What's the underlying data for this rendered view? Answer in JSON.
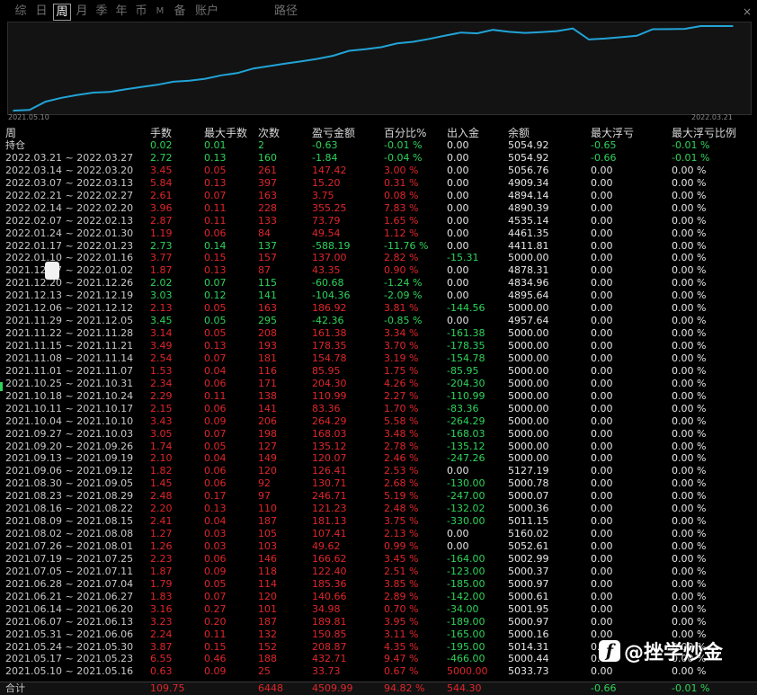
{
  "tabs": [
    {
      "label": "综",
      "active": false
    },
    {
      "label": "日",
      "active": false
    },
    {
      "label": "周",
      "active": true
    },
    {
      "label": "月",
      "active": false
    },
    {
      "label": "季",
      "active": false
    },
    {
      "label": "年",
      "active": false
    },
    {
      "label": "币",
      "active": false
    },
    {
      "label": "M",
      "active": false
    },
    {
      "label": "备",
      "active": false
    },
    {
      "label": "账户",
      "active": false
    },
    {
      "label": "路径",
      "active": false
    }
  ],
  "close_label": "×",
  "chart": {
    "start_date": "2021.05.10",
    "end_date": "2022.03.21",
    "line_color": "#22a3d6",
    "chart_data": {
      "type": "line",
      "x": [
        "2021.05.10",
        "2021.05.17",
        "2021.05.24",
        "2021.05.31",
        "2021.06.07",
        "2021.06.14",
        "2021.06.21",
        "2021.06.28",
        "2021.07.05",
        "2021.07.12",
        "2021.07.19",
        "2021.07.26",
        "2021.08.02",
        "2021.08.09",
        "2021.08.16",
        "2021.08.23",
        "2021.08.30",
        "2021.09.06",
        "2021.09.13",
        "2021.09.20",
        "2021.09.27",
        "2021.10.04",
        "2021.10.11",
        "2021.10.18",
        "2021.10.25",
        "2021.11.01",
        "2021.11.08",
        "2021.11.15",
        "2021.11.22",
        "2021.11.29",
        "2021.12.06",
        "2021.12.13",
        "2021.12.20",
        "2021.12.27",
        "2022.01.03",
        "2022.01.10",
        "2022.01.17",
        "2022.01.24",
        "2022.01.31",
        "2022.02.07",
        "2022.02.14",
        "2022.02.21",
        "2022.02.28",
        "2022.03.07",
        "2022.03.14",
        "2022.03.21"
      ],
      "values": [
        0,
        33.73,
        476.45,
        684.32,
        835.17,
        960.14,
        995.12,
        1135.78,
        1258.66,
        1380.06,
        1546.68,
        1596.3,
        1703.71,
        1885.24,
        2006.47,
        2253.18,
        2383.89,
        2510.3,
        2630.37,
        2765.49,
        2933.52,
        3197.81,
        3281.17,
        3392.16,
        3596.46,
        3682.41,
        3837.19,
        4015.54,
        4176.92,
        4134.66,
        4321.58,
        4217.22,
        4156.54,
        4199.89,
        4256.3,
        4393.3,
        3805.11,
        3854.65,
        3928.44,
        4001.94,
        4357.19,
        4360.94,
        4376.14,
        4523.56,
        4523.56,
        4521.72
      ],
      "grid": false,
      "legend": "none"
    }
  },
  "headers": [
    "周",
    "手数",
    "最大手数",
    "次数",
    "盈亏金额",
    "百分比%",
    "出入金",
    "余额",
    "最大浮亏",
    "最大浮亏比例"
  ],
  "rows": [
    {
      "cls": "green c8g c9g first-dark",
      "cells": [
        "持仓",
        "0.02",
        "0.01",
        "2",
        "-0.63",
        "-0.01 %",
        "0.00",
        "5054.92",
        "-0.65",
        "-0.01 %"
      ]
    },
    {
      "cls": "green c8g c9g",
      "cells": [
        "2022.03.21 ~ 2022.03.27",
        "2.72",
        "0.13",
        "160",
        "-1.84",
        "-0.04 %",
        "0.00",
        "5054.92",
        "-0.66",
        "-0.01 %"
      ]
    },
    {
      "cls": "red",
      "cells": [
        "2022.03.14 ~ 2022.03.20",
        "3.45",
        "0.05",
        "261",
        "147.42",
        "3.00 %",
        "0.00",
        "5056.76",
        "0.00",
        "0.00 %"
      ]
    },
    {
      "cls": "red",
      "cells": [
        "2022.03.07 ~ 2022.03.13",
        "5.84",
        "0.13",
        "397",
        "15.20",
        "0.31 %",
        "0.00",
        "4909.34",
        "0.00",
        "0.00 %"
      ]
    },
    {
      "cls": "red",
      "cells": [
        "2022.02.21 ~ 2022.02.27",
        "2.61",
        "0.07",
        "163",
        "3.75",
        "0.08 %",
        "0.00",
        "4894.14",
        "0.00",
        "0.00 %"
      ]
    },
    {
      "cls": "red",
      "cells": [
        "2022.02.14 ~ 2022.02.20",
        "3.96",
        "0.11",
        "228",
        "355.25",
        "7.83 %",
        "0.00",
        "4890.39",
        "0.00",
        "0.00 %"
      ]
    },
    {
      "cls": "red",
      "cells": [
        "2022.02.07 ~ 2022.02.13",
        "2.87",
        "0.11",
        "133",
        "73.79",
        "1.65 %",
        "0.00",
        "4535.14",
        "0.00",
        "0.00 %"
      ]
    },
    {
      "cls": "red",
      "cells": [
        "2022.01.24 ~ 2022.01.30",
        "1.19",
        "0.06",
        "84",
        "49.54",
        "1.12 %",
        "0.00",
        "4461.35",
        "0.00",
        "0.00 %"
      ]
    },
    {
      "cls": "green",
      "cells": [
        "2022.01.17 ~ 2022.01.23",
        "2.73",
        "0.14",
        "137",
        "-588.19",
        "-11.76 %",
        "0.00",
        "4411.81",
        "0.00",
        "0.00 %"
      ]
    },
    {
      "cls": "red neg-out",
      "cells": [
        "2022.01.10 ~ 2022.01.16",
        "3.77",
        "0.15",
        "157",
        "137.00",
        "2.82 %",
        "-15.31",
        "5000.00",
        "0.00",
        "0.00 %"
      ]
    },
    {
      "cls": "red",
      "cells": [
        "2021.12.27 ~ 2022.01.02",
        "1.87",
        "0.13",
        "87",
        "43.35",
        "0.90 %",
        "0.00",
        "4878.31",
        "0.00",
        "0.00 %"
      ]
    },
    {
      "cls": "green",
      "cells": [
        "2021.12.20 ~ 2021.12.26",
        "2.02",
        "0.07",
        "115",
        "-60.68",
        "-1.24 %",
        "0.00",
        "4834.96",
        "0.00",
        "0.00 %"
      ]
    },
    {
      "cls": "green",
      "cells": [
        "2021.12.13 ~ 2021.12.19",
        "3.03",
        "0.12",
        "141",
        "-104.36",
        "-2.09 %",
        "0.00",
        "4895.64",
        "0.00",
        "0.00 %"
      ]
    },
    {
      "cls": "red neg-out",
      "cells": [
        "2021.12.06 ~ 2021.12.12",
        "2.13",
        "0.05",
        "163",
        "186.92",
        "3.81 %",
        "-144.56",
        "5000.00",
        "0.00",
        "0.00 %"
      ]
    },
    {
      "cls": "green",
      "cells": [
        "2021.11.29 ~ 2021.12.05",
        "3.45",
        "0.05",
        "295",
        "-42.36",
        "-0.85 %",
        "0.00",
        "4957.64",
        "0.00",
        "0.00 %"
      ]
    },
    {
      "cls": "red neg-out",
      "cells": [
        "2021.11.22 ~ 2021.11.28",
        "3.14",
        "0.05",
        "208",
        "161.38",
        "3.34 %",
        "-161.38",
        "5000.00",
        "0.00",
        "0.00 %"
      ]
    },
    {
      "cls": "red neg-out",
      "cells": [
        "2021.11.15 ~ 2021.11.21",
        "3.49",
        "0.13",
        "193",
        "178.35",
        "3.70 %",
        "-178.35",
        "5000.00",
        "0.00",
        "0.00 %"
      ]
    },
    {
      "cls": "red neg-out",
      "cells": [
        "2021.11.08 ~ 2021.11.14",
        "2.54",
        "0.07",
        "181",
        "154.78",
        "3.19 %",
        "-154.78",
        "5000.00",
        "0.00",
        "0.00 %"
      ]
    },
    {
      "cls": "red neg-out",
      "cells": [
        "2021.11.01 ~ 2021.11.07",
        "1.53",
        "0.04",
        "116",
        "85.95",
        "1.75 %",
        "-85.95",
        "5000.00",
        "0.00",
        "0.00 %"
      ]
    },
    {
      "cls": "red neg-out",
      "cells": [
        "2021.10.25 ~ 2021.10.31",
        "2.34",
        "0.06",
        "171",
        "204.30",
        "4.26 %",
        "-204.30",
        "5000.00",
        "0.00",
        "0.00 %"
      ]
    },
    {
      "cls": "red neg-out",
      "cells": [
        "2021.10.18 ~ 2021.10.24",
        "2.29",
        "0.11",
        "138",
        "110.99",
        "2.27 %",
        "-110.99",
        "5000.00",
        "0.00",
        "0.00 %"
      ]
    },
    {
      "cls": "red neg-out",
      "cells": [
        "2021.10.11 ~ 2021.10.17",
        "2.15",
        "0.06",
        "141",
        "83.36",
        "1.70 %",
        "-83.36",
        "5000.00",
        "0.00",
        "0.00 %"
      ]
    },
    {
      "cls": "red neg-out",
      "cells": [
        "2021.10.04 ~ 2021.10.10",
        "3.43",
        "0.09",
        "206",
        "264.29",
        "5.58 %",
        "-264.29",
        "5000.00",
        "0.00",
        "0.00 %"
      ]
    },
    {
      "cls": "red neg-out",
      "cells": [
        "2021.09.27 ~ 2021.10.03",
        "3.05",
        "0.07",
        "198",
        "168.03",
        "3.48 %",
        "-168.03",
        "5000.00",
        "0.00",
        "0.00 %"
      ]
    },
    {
      "cls": "red neg-out",
      "cells": [
        "2021.09.20 ~ 2021.09.26",
        "1.74",
        "0.05",
        "127",
        "135.12",
        "2.78 %",
        "-135.12",
        "5000.00",
        "0.00",
        "0.00 %"
      ]
    },
    {
      "cls": "red neg-out",
      "cells": [
        "2021.09.13 ~ 2021.09.19",
        "2.10",
        "0.04",
        "149",
        "120.07",
        "2.46 %",
        "-247.26",
        "5000.00",
        "0.00",
        "0.00 %"
      ]
    },
    {
      "cls": "red",
      "cells": [
        "2021.09.06 ~ 2021.09.12",
        "1.82",
        "0.06",
        "120",
        "126.41",
        "2.53 %",
        "0.00",
        "5127.19",
        "0.00",
        "0.00 %"
      ]
    },
    {
      "cls": "red neg-out",
      "cells": [
        "2021.08.30 ~ 2021.09.05",
        "1.45",
        "0.06",
        "92",
        "130.71",
        "2.68 %",
        "-130.00",
        "5000.78",
        "0.00",
        "0.00 %"
      ]
    },
    {
      "cls": "red neg-out",
      "cells": [
        "2021.08.23 ~ 2021.08.29",
        "2.48",
        "0.17",
        "97",
        "246.71",
        "5.19 %",
        "-247.00",
        "5000.07",
        "0.00",
        "0.00 %"
      ]
    },
    {
      "cls": "red neg-out",
      "cells": [
        "2021.08.16 ~ 2021.08.22",
        "2.20",
        "0.13",
        "110",
        "121.23",
        "2.48 %",
        "-132.02",
        "5000.36",
        "0.00",
        "0.00 %"
      ]
    },
    {
      "cls": "red neg-out",
      "cells": [
        "2021.08.09 ~ 2021.08.15",
        "2.41",
        "0.04",
        "187",
        "181.13",
        "3.75 %",
        "-330.00",
        "5011.15",
        "0.00",
        "0.00 %"
      ]
    },
    {
      "cls": "red",
      "cells": [
        "2021.08.02 ~ 2021.08.08",
        "1.27",
        "0.03",
        "105",
        "107.41",
        "2.13 %",
        "0.00",
        "5160.02",
        "0.00",
        "0.00 %"
      ]
    },
    {
      "cls": "red",
      "cells": [
        "2021.07.26 ~ 2021.08.01",
        "1.26",
        "0.03",
        "103",
        "49.62",
        "0.99 %",
        "0.00",
        "5052.61",
        "0.00",
        "0.00 %"
      ]
    },
    {
      "cls": "red neg-out",
      "cells": [
        "2021.07.19 ~ 2021.07.25",
        "2.23",
        "0.06",
        "146",
        "166.62",
        "3.45 %",
        "-164.00",
        "5002.99",
        "0.00",
        "0.00 %"
      ]
    },
    {
      "cls": "red neg-out",
      "cells": [
        "2021.07.05 ~ 2021.07.11",
        "1.87",
        "0.09",
        "118",
        "122.40",
        "2.51 %",
        "-123.00",
        "5000.37",
        "0.00",
        "0.00 %"
      ]
    },
    {
      "cls": "red neg-out",
      "cells": [
        "2021.06.28 ~ 2021.07.04",
        "1.79",
        "0.05",
        "114",
        "185.36",
        "3.85 %",
        "-185.00",
        "5000.97",
        "0.00",
        "0.00 %"
      ]
    },
    {
      "cls": "red neg-out",
      "cells": [
        "2021.06.21 ~ 2021.06.27",
        "1.83",
        "0.07",
        "120",
        "140.66",
        "2.89 %",
        "-142.00",
        "5000.61",
        "0.00",
        "0.00 %"
      ]
    },
    {
      "cls": "red neg-out",
      "cells": [
        "2021.06.14 ~ 2021.06.20",
        "3.16",
        "0.27",
        "101",
        "34.98",
        "0.70 %",
        "-34.00",
        "5001.95",
        "0.00",
        "0.00 %"
      ]
    },
    {
      "cls": "red neg-out",
      "cells": [
        "2021.06.07 ~ 2021.06.13",
        "3.23",
        "0.20",
        "187",
        "189.81",
        "3.95 %",
        "-189.00",
        "5000.97",
        "0.00",
        "0.00 %"
      ]
    },
    {
      "cls": "red neg-out",
      "cells": [
        "2021.05.31 ~ 2021.06.06",
        "2.24",
        "0.11",
        "132",
        "150.85",
        "3.11 %",
        "-165.00",
        "5000.16",
        "0.00",
        "0.00 %"
      ]
    },
    {
      "cls": "red neg-out",
      "cells": [
        "2021.05.24 ~ 2021.05.30",
        "3.87",
        "0.15",
        "152",
        "208.87",
        "4.35 %",
        "-195.00",
        "5014.31",
        "0.00",
        "0.00 %"
      ]
    },
    {
      "cls": "red neg-out",
      "cells": [
        "2021.05.17 ~ 2021.05.23",
        "6.55",
        "0.46",
        "188",
        "432.71",
        "9.47 %",
        "-466.00",
        "5000.44",
        "0.00",
        "0.00 %"
      ]
    },
    {
      "cls": "red pos-out",
      "cells": [
        "2021.05.10 ~ 2021.05.16",
        "0.63",
        "0.09",
        "25",
        "33.73",
        "0.67 %",
        "5000.00",
        "5033.73",
        "0.00",
        "0.00 %"
      ]
    }
  ],
  "totals": [
    "合计",
    "109.75",
    "",
    "6448",
    "4509.99",
    "94.82 %",
    "544.30",
    "",
    "-0.66",
    "-0.01 %"
  ],
  "watermark": {
    "logo_letter": "f",
    "text": "@挫学炒金"
  }
}
